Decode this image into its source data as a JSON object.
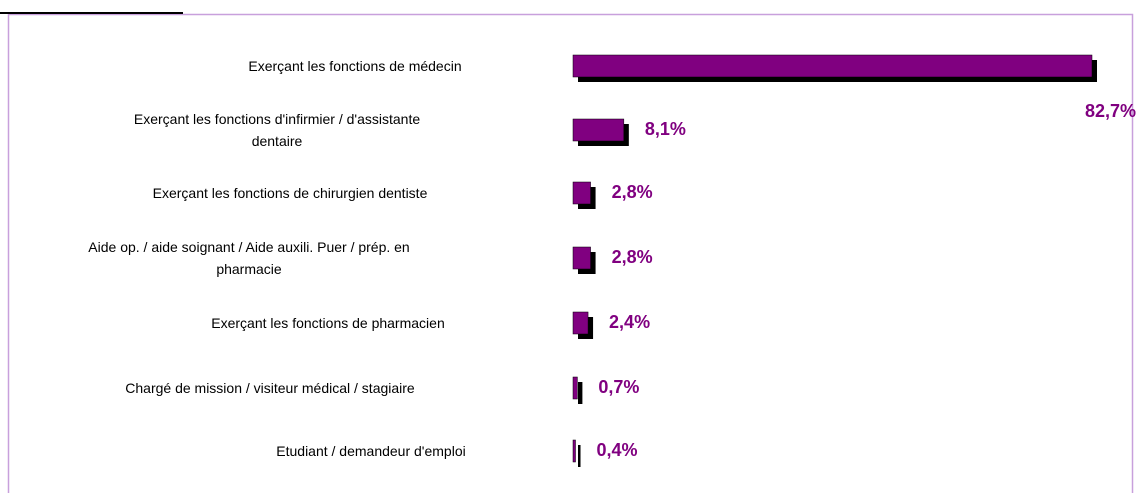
{
  "chart_data": {
    "type": "bar",
    "orientation": "horizontal",
    "categories": [
      "Exerçant les fonctions de médecin",
      "Exerçant les fonctions d'infirmier / d'assistante\ndentaire",
      "Exerçant les fonctions de chirurgien dentiste",
      "Aide op. / aide soignant / Aide auxili. Puer / prép. en\npharmacie",
      "Exerçant les fonctions de pharmacien",
      "Chargé de mission / visiteur médical / stagiaire",
      "Etudiant / demandeur d'emploi"
    ],
    "values": [
      82.7,
      8.1,
      2.8,
      2.8,
      2.4,
      0.7,
      0.4
    ],
    "value_labels": [
      "82,7%",
      "8,1%",
      "2,8%",
      "2,8%",
      "2,4%",
      "0,7%",
      "0,4%"
    ],
    "color": "#800080",
    "shadow_color": "#000000"
  }
}
